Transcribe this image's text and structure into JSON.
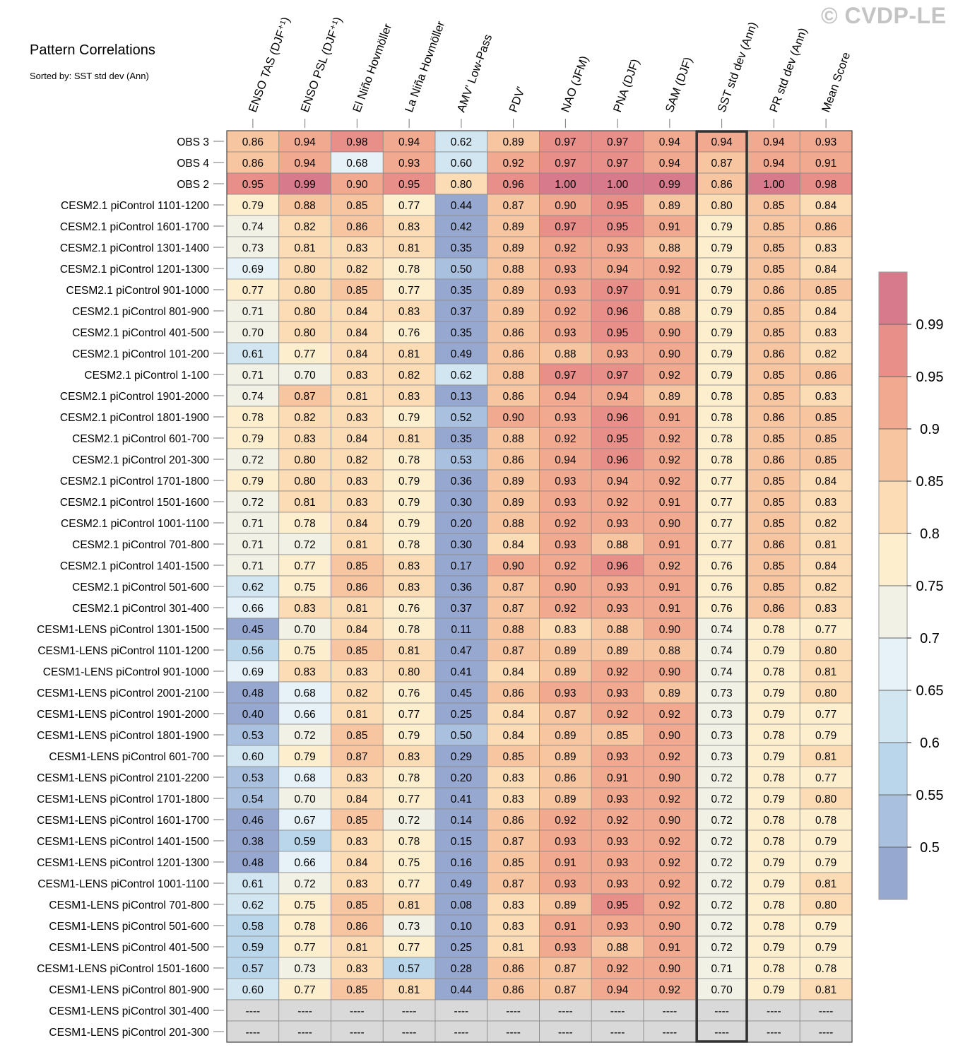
{
  "watermark": "© CVDP-LE",
  "chart_data": {
    "type": "heatmap",
    "title": "Pattern Correlations",
    "subtitle": "Sorted by: SST std dev (Ann)",
    "highlight_column": "SST std dev (Ann)",
    "columns": [
      "ENSO TAS (DJF⁺¹)",
      "ENSO PSL (DJF⁺¹)",
      "El Niño Hovmöller",
      "La Niña Hovmöller",
      "AMV' Low-Pass",
      "PDV'",
      "NAO (JFM)",
      "PNA (DJF)",
      "SAM (DJF)",
      "SST std dev (Ann)",
      "PR std dev (Ann)",
      "Mean Score"
    ],
    "rows": [
      {
        "name": "OBS 3",
        "values": [
          "0.86",
          "0.94",
          "0.98",
          "0.94",
          "0.62",
          "0.89",
          "0.97",
          "0.97",
          "0.94",
          "0.94",
          "0.94",
          "0.93"
        ]
      },
      {
        "name": "OBS 4",
        "values": [
          "0.86",
          "0.94",
          "0.68",
          "0.93",
          "0.60",
          "0.92",
          "0.97",
          "0.97",
          "0.94",
          "0.87",
          "0.94",
          "0.91"
        ]
      },
      {
        "name": "OBS 2",
        "values": [
          "0.95",
          "0.99",
          "0.90",
          "0.95",
          "0.80",
          "0.96",
          "1.00",
          "1.00",
          "0.99",
          "0.86",
          "1.00",
          "0.98"
        ]
      },
      {
        "name": "CESM2.1 piControl 1101-1200",
        "values": [
          "0.79",
          "0.88",
          "0.85",
          "0.77",
          "0.44",
          "0.87",
          "0.90",
          "0.95",
          "0.89",
          "0.80",
          "0.85",
          "0.84"
        ]
      },
      {
        "name": "CESM2.1 piControl 1601-1700",
        "values": [
          "0.74",
          "0.82",
          "0.86",
          "0.83",
          "0.42",
          "0.89",
          "0.97",
          "0.95",
          "0.91",
          "0.79",
          "0.85",
          "0.86"
        ]
      },
      {
        "name": "CESM2.1 piControl 1301-1400",
        "values": [
          "0.73",
          "0.81",
          "0.83",
          "0.81",
          "0.35",
          "0.89",
          "0.92",
          "0.93",
          "0.88",
          "0.79",
          "0.85",
          "0.83"
        ]
      },
      {
        "name": "CESM2.1 piControl 1201-1300",
        "values": [
          "0.69",
          "0.80",
          "0.82",
          "0.78",
          "0.50",
          "0.88",
          "0.93",
          "0.94",
          "0.92",
          "0.79",
          "0.85",
          "0.84"
        ]
      },
      {
        "name": "CESM2.1 piControl 901-1000",
        "values": [
          "0.77",
          "0.80",
          "0.85",
          "0.77",
          "0.35",
          "0.89",
          "0.93",
          "0.97",
          "0.91",
          "0.79",
          "0.86",
          "0.85"
        ]
      },
      {
        "name": "CESM2.1 piControl 801-900",
        "values": [
          "0.71",
          "0.80",
          "0.84",
          "0.83",
          "0.37",
          "0.89",
          "0.92",
          "0.96",
          "0.88",
          "0.79",
          "0.85",
          "0.84"
        ]
      },
      {
        "name": "CESM2.1 piControl 401-500",
        "values": [
          "0.70",
          "0.80",
          "0.84",
          "0.76",
          "0.35",
          "0.86",
          "0.93",
          "0.95",
          "0.90",
          "0.79",
          "0.85",
          "0.83"
        ]
      },
      {
        "name": "CESM2.1 piControl 101-200",
        "values": [
          "0.61",
          "0.77",
          "0.84",
          "0.81",
          "0.49",
          "0.86",
          "0.88",
          "0.93",
          "0.90",
          "0.79",
          "0.86",
          "0.82"
        ]
      },
      {
        "name": "CESM2.1 piControl 1-100",
        "values": [
          "0.71",
          "0.70",
          "0.83",
          "0.82",
          "0.62",
          "0.88",
          "0.97",
          "0.97",
          "0.92",
          "0.79",
          "0.85",
          "0.86"
        ]
      },
      {
        "name": "CESM2.1 piControl 1901-2000",
        "values": [
          "0.74",
          "0.87",
          "0.81",
          "0.83",
          "0.13",
          "0.86",
          "0.94",
          "0.94",
          "0.89",
          "0.78",
          "0.85",
          "0.83"
        ]
      },
      {
        "name": "CESM2.1 piControl 1801-1900",
        "values": [
          "0.78",
          "0.82",
          "0.83",
          "0.79",
          "0.52",
          "0.90",
          "0.93",
          "0.96",
          "0.91",
          "0.78",
          "0.86",
          "0.85"
        ]
      },
      {
        "name": "CESM2.1 piControl 601-700",
        "values": [
          "0.79",
          "0.83",
          "0.84",
          "0.81",
          "0.35",
          "0.88",
          "0.92",
          "0.95",
          "0.92",
          "0.78",
          "0.85",
          "0.85"
        ]
      },
      {
        "name": "CESM2.1 piControl 201-300",
        "values": [
          "0.72",
          "0.80",
          "0.82",
          "0.78",
          "0.53",
          "0.86",
          "0.94",
          "0.96",
          "0.92",
          "0.78",
          "0.86",
          "0.85"
        ]
      },
      {
        "name": "CESM2.1 piControl 1701-1800",
        "values": [
          "0.79",
          "0.80",
          "0.83",
          "0.79",
          "0.36",
          "0.89",
          "0.93",
          "0.94",
          "0.92",
          "0.77",
          "0.85",
          "0.84"
        ]
      },
      {
        "name": "CESM2.1 piControl 1501-1600",
        "values": [
          "0.72",
          "0.81",
          "0.83",
          "0.79",
          "0.30",
          "0.89",
          "0.93",
          "0.92",
          "0.91",
          "0.77",
          "0.85",
          "0.83"
        ]
      },
      {
        "name": "CESM2.1 piControl 1001-1100",
        "values": [
          "0.71",
          "0.78",
          "0.84",
          "0.79",
          "0.20",
          "0.88",
          "0.92",
          "0.93",
          "0.90",
          "0.77",
          "0.85",
          "0.82"
        ]
      },
      {
        "name": "CESM2.1 piControl 701-800",
        "values": [
          "0.71",
          "0.72",
          "0.81",
          "0.78",
          "0.30",
          "0.84",
          "0.93",
          "0.88",
          "0.91",
          "0.77",
          "0.86",
          "0.81"
        ]
      },
      {
        "name": "CESM2.1 piControl 1401-1500",
        "values": [
          "0.71",
          "0.77",
          "0.85",
          "0.83",
          "0.17",
          "0.90",
          "0.92",
          "0.96",
          "0.92",
          "0.76",
          "0.85",
          "0.84"
        ]
      },
      {
        "name": "CESM2.1 piControl 501-600",
        "values": [
          "0.62",
          "0.75",
          "0.86",
          "0.83",
          "0.36",
          "0.87",
          "0.90",
          "0.93",
          "0.91",
          "0.76",
          "0.85",
          "0.82"
        ]
      },
      {
        "name": "CESM2.1 piControl 301-400",
        "values": [
          "0.66",
          "0.83",
          "0.81",
          "0.76",
          "0.37",
          "0.87",
          "0.92",
          "0.93",
          "0.91",
          "0.76",
          "0.86",
          "0.83"
        ]
      },
      {
        "name": "CESM1-LENS piControl 1301-1500",
        "values": [
          "0.45",
          "0.70",
          "0.84",
          "0.78",
          "0.11",
          "0.88",
          "0.83",
          "0.88",
          "0.90",
          "0.74",
          "0.78",
          "0.77"
        ]
      },
      {
        "name": "CESM1-LENS piControl 1101-1200",
        "values": [
          "0.56",
          "0.75",
          "0.85",
          "0.81",
          "0.47",
          "0.87",
          "0.89",
          "0.89",
          "0.88",
          "0.74",
          "0.79",
          "0.80"
        ]
      },
      {
        "name": "CESM1-LENS piControl 901-1000",
        "values": [
          "0.69",
          "0.83",
          "0.83",
          "0.80",
          "0.41",
          "0.84",
          "0.89",
          "0.92",
          "0.90",
          "0.74",
          "0.78",
          "0.81"
        ]
      },
      {
        "name": "CESM1-LENS piControl 2001-2100",
        "values": [
          "0.48",
          "0.68",
          "0.82",
          "0.76",
          "0.45",
          "0.86",
          "0.93",
          "0.93",
          "0.89",
          "0.73",
          "0.79",
          "0.80"
        ]
      },
      {
        "name": "CESM1-LENS piControl 1901-2000",
        "values": [
          "0.40",
          "0.66",
          "0.81",
          "0.77",
          "0.25",
          "0.84",
          "0.87",
          "0.92",
          "0.92",
          "0.73",
          "0.79",
          "0.77"
        ]
      },
      {
        "name": "CESM1-LENS piControl 1801-1900",
        "values": [
          "0.53",
          "0.72",
          "0.85",
          "0.79",
          "0.50",
          "0.84",
          "0.89",
          "0.85",
          "0.90",
          "0.73",
          "0.78",
          "0.79"
        ]
      },
      {
        "name": "CESM1-LENS piControl 601-700",
        "values": [
          "0.60",
          "0.79",
          "0.87",
          "0.83",
          "0.29",
          "0.85",
          "0.89",
          "0.93",
          "0.92",
          "0.73",
          "0.79",
          "0.81"
        ]
      },
      {
        "name": "CESM1-LENS piControl 2101-2200",
        "values": [
          "0.53",
          "0.68",
          "0.83",
          "0.78",
          "0.20",
          "0.83",
          "0.86",
          "0.91",
          "0.90",
          "0.72",
          "0.78",
          "0.77"
        ]
      },
      {
        "name": "CESM1-LENS piControl 1701-1800",
        "values": [
          "0.54",
          "0.70",
          "0.84",
          "0.77",
          "0.41",
          "0.83",
          "0.89",
          "0.93",
          "0.92",
          "0.72",
          "0.79",
          "0.80"
        ]
      },
      {
        "name": "CESM1-LENS piControl 1601-1700",
        "values": [
          "0.46",
          "0.67",
          "0.85",
          "0.72",
          "0.14",
          "0.86",
          "0.92",
          "0.92",
          "0.90",
          "0.72",
          "0.78",
          "0.78"
        ]
      },
      {
        "name": "CESM1-LENS piControl 1401-1500",
        "values": [
          "0.38",
          "0.59",
          "0.83",
          "0.78",
          "0.15",
          "0.87",
          "0.93",
          "0.93",
          "0.92",
          "0.72",
          "0.78",
          "0.79"
        ]
      },
      {
        "name": "CESM1-LENS piControl 1201-1300",
        "values": [
          "0.48",
          "0.66",
          "0.84",
          "0.75",
          "0.16",
          "0.85",
          "0.91",
          "0.93",
          "0.92",
          "0.72",
          "0.79",
          "0.79"
        ]
      },
      {
        "name": "CESM1-LENS piControl 1001-1100",
        "values": [
          "0.61",
          "0.72",
          "0.83",
          "0.77",
          "0.49",
          "0.87",
          "0.93",
          "0.93",
          "0.92",
          "0.72",
          "0.79",
          "0.81"
        ]
      },
      {
        "name": "CESM1-LENS piControl 701-800",
        "values": [
          "0.62",
          "0.75",
          "0.85",
          "0.81",
          "0.08",
          "0.83",
          "0.89",
          "0.95",
          "0.92",
          "0.72",
          "0.78",
          "0.80"
        ]
      },
      {
        "name": "CESM1-LENS piControl 501-600",
        "values": [
          "0.58",
          "0.78",
          "0.86",
          "0.73",
          "0.10",
          "0.83",
          "0.91",
          "0.93",
          "0.90",
          "0.72",
          "0.78",
          "0.79"
        ]
      },
      {
        "name": "CESM1-LENS piControl 401-500",
        "values": [
          "0.59",
          "0.77",
          "0.81",
          "0.77",
          "0.25",
          "0.81",
          "0.93",
          "0.88",
          "0.91",
          "0.72",
          "0.79",
          "0.79"
        ]
      },
      {
        "name": "CESM1-LENS piControl 1501-1600",
        "values": [
          "0.57",
          "0.73",
          "0.83",
          "0.57",
          "0.28",
          "0.86",
          "0.87",
          "0.92",
          "0.90",
          "0.71",
          "0.78",
          "0.78"
        ]
      },
      {
        "name": "CESM1-LENS piControl 801-900",
        "values": [
          "0.60",
          "0.77",
          "0.85",
          "0.81",
          "0.44",
          "0.86",
          "0.87",
          "0.94",
          "0.92",
          "0.70",
          "0.79",
          "0.81"
        ]
      },
      {
        "name": "CESM1-LENS piControl 301-400",
        "values": [
          "----",
          "----",
          "----",
          "----",
          "----",
          "----",
          "----",
          "----",
          "----",
          "----",
          "----",
          "----"
        ]
      },
      {
        "name": "CESM1-LENS piControl 201-300",
        "values": [
          "----",
          "----",
          "----",
          "----",
          "----",
          "----",
          "----",
          "----",
          "----",
          "----",
          "----",
          "----"
        ]
      }
    ],
    "colorbar": {
      "ticks": [
        "0.5",
        "0.55",
        "0.6",
        "0.65",
        "0.7",
        "0.75",
        "0.8",
        "0.85",
        "0.9",
        "0.95",
        "0.99"
      ],
      "levels": [
        0.5,
        0.55,
        0.6,
        0.65,
        0.7,
        0.75,
        0.8,
        0.85,
        0.9,
        0.95,
        0.99
      ],
      "colors": [
        "#97a8d0",
        "#a9c1de",
        "#bad6ea",
        "#d1e6f1",
        "#e6f2f7",
        "#f2f1e5",
        "#fdefce",
        "#fbdcb5",
        "#f7c6a1",
        "#f1aa8f",
        "#e88f8a",
        "#d67a8c"
      ],
      "missing_color": "#d9d9d9"
    }
  }
}
